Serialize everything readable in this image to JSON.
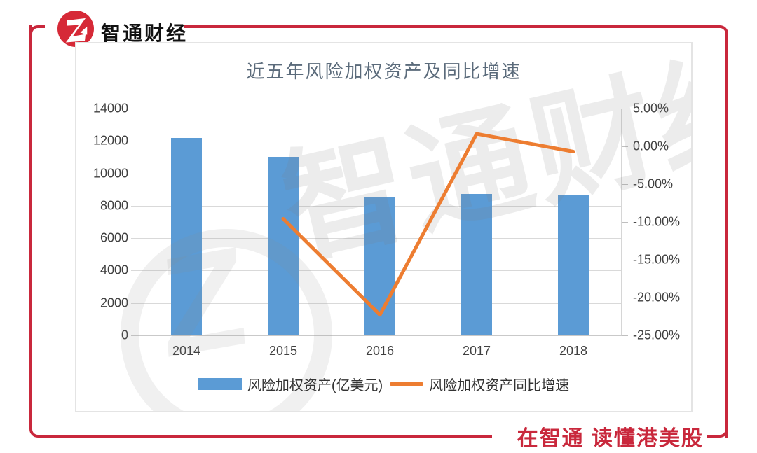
{
  "brand": {
    "logo_text": "智通财经",
    "slogan": "在智通 读懂港美股",
    "brand_red": "#C9283C",
    "logo_red": "#D62937"
  },
  "chart_data": {
    "type": "bar",
    "title": "近五年风险加权资产及同比增速",
    "categories": [
      "2014",
      "2015",
      "2016",
      "2017",
      "2018"
    ],
    "series": [
      {
        "name": "风险加权资产(亿美元)",
        "type": "bar",
        "axis": "left",
        "color": "#5B9BD5",
        "values": [
          12198,
          11029,
          8571,
          8713,
          8653
        ]
      },
      {
        "name": "风险加权资产同比增速",
        "type": "line",
        "axis": "right",
        "color": "#ED7D31",
        "values": [
          null,
          -9.58,
          -22.29,
          1.66,
          -0.69
        ]
      }
    ],
    "left_axis": {
      "min": 0,
      "max": 14000,
      "step": 2000,
      "tick_labels": [
        "0",
        "2000",
        "4000",
        "6000",
        "8000",
        "10000",
        "12000",
        "14000"
      ]
    },
    "right_axis": {
      "min": -25,
      "max": 5,
      "step": 5,
      "tick_labels": [
        "5.00%",
        "0.00%",
        "-5.00%",
        "-10.00%",
        "-15.00%",
        "-20.00%",
        "-25.00%"
      ]
    },
    "grid": true,
    "legend_position": "bottom",
    "watermark": "智通财经",
    "watermark_letter": "Z"
  },
  "colors": {
    "bar": "#5B9BD5",
    "line": "#ED7D31",
    "grid": "#D9D9D9",
    "axis_text": "#404040",
    "title_text": "#5B6B7B"
  }
}
